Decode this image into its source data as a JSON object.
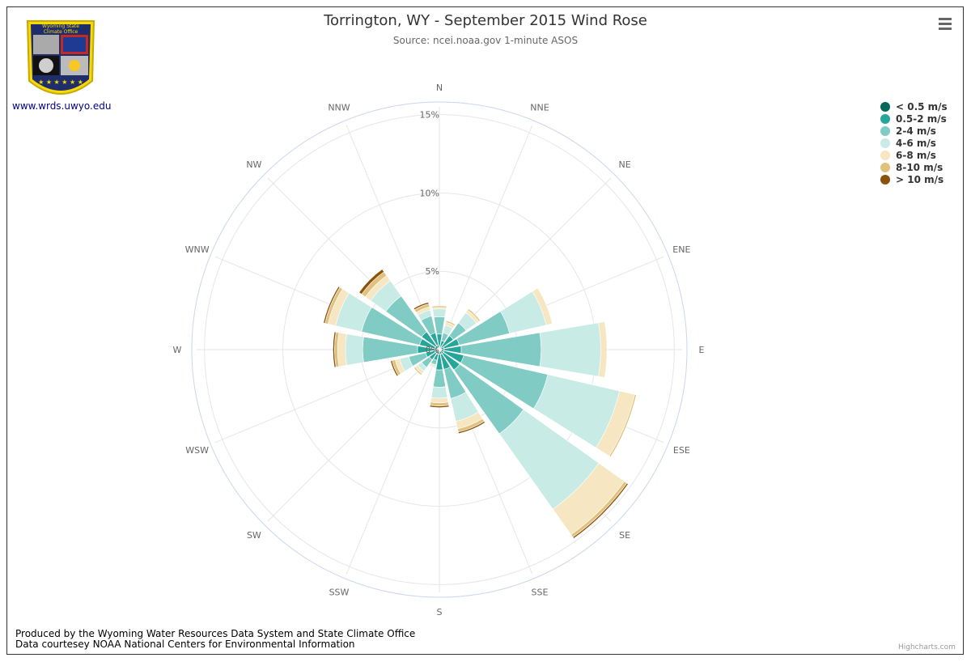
{
  "header": {
    "title": "Torrington, WY - September 2015 Wind Rose",
    "subtitle": "Source: ncei.noaa.gov 1-minute ASOS"
  },
  "logo": {
    "text": "Wyoming State Climate Office",
    "link_text": "www.wrds.uwyo.edu"
  },
  "menu": {
    "icon": "hamburger-menu-icon"
  },
  "footer": {
    "line1": "Produced by the Wyoming Water Resources Data System and State Climate Office",
    "line2": "Data courtesey NOAA National Centers for Environmental Information",
    "credit": "Highcharts.com"
  },
  "chart_data": {
    "type": "windrose",
    "title": "Torrington, WY - September 2015 Wind Rose",
    "subtitle": "Source: ncei.noaa.gov 1-minute ASOS",
    "directions": [
      "N",
      "NNE",
      "NE",
      "ENE",
      "E",
      "ESE",
      "SE",
      "SSE",
      "S",
      "SSW",
      "SW",
      "WSW",
      "W",
      "WNW",
      "NW",
      "NNW"
    ],
    "radial_ticks": [
      "0%",
      "5%",
      "10%",
      "15%"
    ],
    "radial_max": 15.5,
    "stacked": true,
    "legend_position": "top-right",
    "series": [
      {
        "name": "< 0.5 m/s",
        "color": "#00695c",
        "values": [
          0.2,
          0.2,
          0.2,
          0.3,
          0.3,
          0.3,
          0.3,
          0.3,
          0.3,
          0.3,
          0.3,
          0.3,
          0.3,
          0.3,
          0.3,
          0.3
        ]
      },
      {
        "name": "0.5-2 m/s",
        "color": "#26a69a",
        "values": [
          0.8,
          0.4,
          0.9,
          1.0,
          1.1,
          1.3,
          1.3,
          1.0,
          1.0,
          0.4,
          0.5,
          0.6,
          1.1,
          1.0,
          1.1,
          0.8
        ]
      },
      {
        "name": "2-4 m/s",
        "color": "#80cbc4",
        "values": [
          1.1,
          0.5,
          1.0,
          3.3,
          5.1,
          5.5,
          5.0,
          1.9,
          1.1,
          0.3,
          0.6,
          1.1,
          3.5,
          3.8,
          2.8,
          1.1
        ]
      },
      {
        "name": "4-6 m/s",
        "color": "#c8ebe6",
        "values": [
          0.5,
          0.5,
          0.8,
          2.4,
          3.8,
          4.7,
          5.9,
          1.5,
          0.7,
          0.1,
          0.3,
          0.6,
          1.1,
          1.7,
          1.2,
          0.4
        ]
      },
      {
        "name": "6-8 m/s",
        "color": "#f6e6c1",
        "values": [
          0.1,
          0.2,
          0.2,
          0.4,
          0.4,
          1.0,
          2.0,
          0.5,
          0.3,
          0.1,
          0.2,
          0.3,
          0.5,
          0.5,
          0.4,
          0.2
        ]
      },
      {
        "name": "8-10 m/s",
        "color": "#dfc27d",
        "values": [
          0.1,
          0.1,
          0.1,
          0.0,
          0.0,
          0.1,
          0.2,
          0.2,
          0.2,
          0.0,
          0.1,
          0.2,
          0.2,
          0.2,
          0.3,
          0.2
        ]
      },
      {
        "name": "> 10 m/s",
        "color": "#8c510a",
        "values": [
          0.0,
          0.0,
          0.0,
          0.0,
          0.0,
          0.0,
          0.1,
          0.1,
          0.1,
          0.0,
          0.0,
          0.1,
          0.1,
          0.1,
          0.2,
          0.1
        ]
      }
    ]
  }
}
